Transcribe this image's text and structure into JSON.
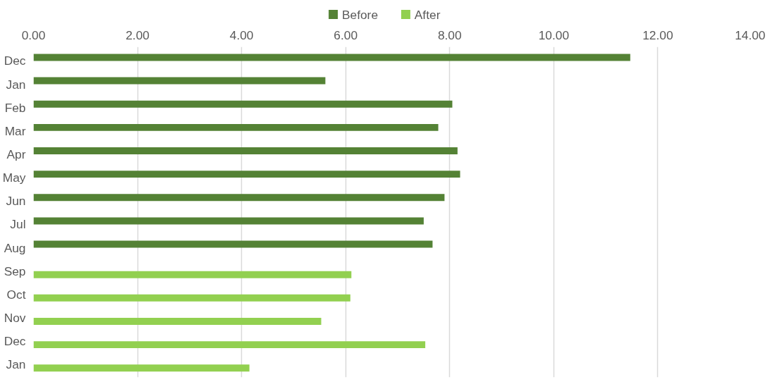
{
  "chart_data": {
    "type": "bar",
    "orientation": "horizontal",
    "categories": [
      "Dec",
      "Jan",
      "Feb",
      "Mar",
      "Apr",
      "May",
      "Jun",
      "Jul",
      "Aug",
      "Sep",
      "Oct",
      "Nov",
      "Dec",
      "Jan"
    ],
    "series": [
      {
        "name": "Before",
        "color": "#548235",
        "values": [
          11.47,
          5.61,
          8.05,
          7.78,
          8.15,
          8.2,
          7.9,
          7.5,
          7.67,
          null,
          null,
          null,
          null,
          null
        ]
      },
      {
        "name": "After",
        "color": "#92d050",
        "values": [
          null,
          null,
          null,
          null,
          null,
          null,
          null,
          null,
          null,
          6.11,
          6.09,
          5.53,
          7.53,
          4.15
        ]
      }
    ],
    "xlim": [
      0,
      14
    ],
    "xticks": [
      {
        "value": 0,
        "label": "0.00"
      },
      {
        "value": 2,
        "label": "2.00"
      },
      {
        "value": 4,
        "label": "4.00"
      },
      {
        "value": 6,
        "label": "6.00"
      },
      {
        "value": 8,
        "label": "8.00"
      },
      {
        "value": 10,
        "label": "10.00"
      },
      {
        "value": 12,
        "label": "12.00"
      },
      {
        "value": 14,
        "label": "14.00"
      }
    ],
    "grid": "x",
    "legend": "top"
  }
}
